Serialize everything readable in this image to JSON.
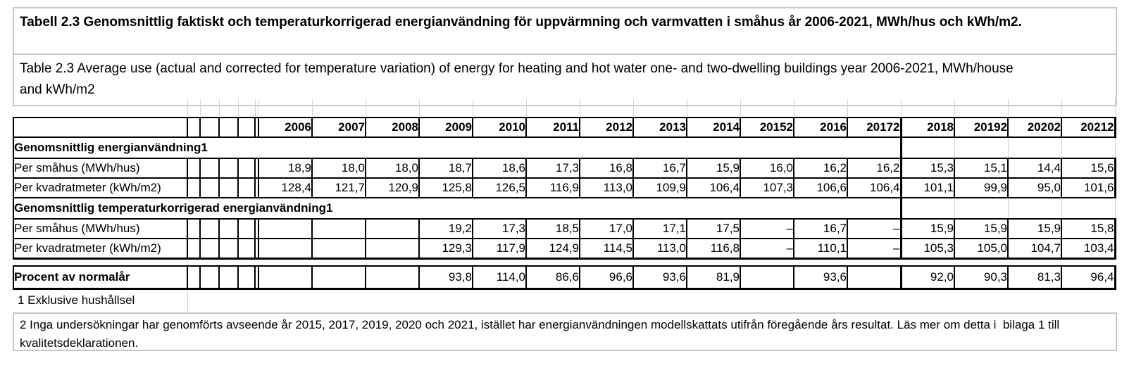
{
  "title": {
    "sv": "Tabell 2.3 Genomsnittlig faktiskt och temperaturkorrigerad energianvändning för uppvärmning och varmvatten i småhus år 2006-2021, MWh/hus och kWh/m2.",
    "en": "Table 2.3 Average use (actual and corrected for temperature variation) of energy for heating and hot water one- and two-dwelling buildings year 2006-2021, MWh/house and kWh/m2"
  },
  "table": {
    "years": [
      "2006",
      "2007",
      "2008",
      "2009",
      "2010",
      "2011",
      "2012",
      "2013",
      "2014",
      "20152",
      "2016",
      "20172",
      "2018",
      "20192",
      "20202",
      "20212"
    ],
    "sections": [
      {
        "header": "Genomsnittlig energianvändning1",
        "rows": [
          {
            "label": "Per småhus (MWh/hus)",
            "values": [
              "18,9",
              "18,0",
              "18,0",
              "18,7",
              "18,6",
              "17,3",
              "16,8",
              "16,7",
              "15,9",
              "16,0",
              "16,2",
              "16,2",
              "15,3",
              "15,1",
              "14,4",
              "15,6"
            ]
          },
          {
            "label": "Per kvadratmeter (kWh/m2)",
            "values": [
              "128,4",
              "121,7",
              "120,9",
              "125,8",
              "126,5",
              "116,9",
              "113,0",
              "109,9",
              "106,4",
              "107,3",
              "106,6",
              "106,4",
              "101,1",
              "99,9",
              "95,0",
              "101,6"
            ]
          }
        ]
      },
      {
        "header": "Genomsnittlig temperaturkorrigerad energianvändning1",
        "rows": [
          {
            "label": "Per småhus (MWh/hus)",
            "values": [
              "",
              "",
              "",
              "19,2",
              "17,3",
              "18,5",
              "17,0",
              "17,1",
              "17,5",
              "–",
              "16,7",
              "–",
              "15,9",
              "15,9",
              "15,9",
              "15,8"
            ]
          },
          {
            "label": "Per kvadratmeter (kWh/m2)",
            "values": [
              "",
              "",
              "",
              "129,3",
              "117,9",
              "124,9",
              "114,5",
              "113,0",
              "116,8",
              "–",
              "110,1",
              "–",
              "105,3",
              "105,0",
              "104,7",
              "103,4"
            ]
          }
        ]
      }
    ],
    "summary_row": {
      "label": "Procent av normalår",
      "values": [
        "",
        "",
        "",
        "93,8",
        "114,0",
        "86,6",
        "96,6",
        "93,6",
        "81,9",
        "",
        "93,6",
        "",
        "92,0",
        "90,3",
        "81,3",
        "96,4"
      ]
    },
    "footnotes": {
      "fn1": "1 Exklusive hushållsel",
      "fn2": "2 Inga undersökningar har genomförts avseende år 2015, 2017, 2019, 2020 och 2021, istället har energianvändningen modellskattats utifrån föregående års resultat. Läs mer om detta i  bilaga 1 till kvalitetsdeklarationen."
    }
  },
  "colors": {
    "border_black": "#000000",
    "gridline": "#d2d2dd",
    "box_border": "#c6c6ce"
  }
}
